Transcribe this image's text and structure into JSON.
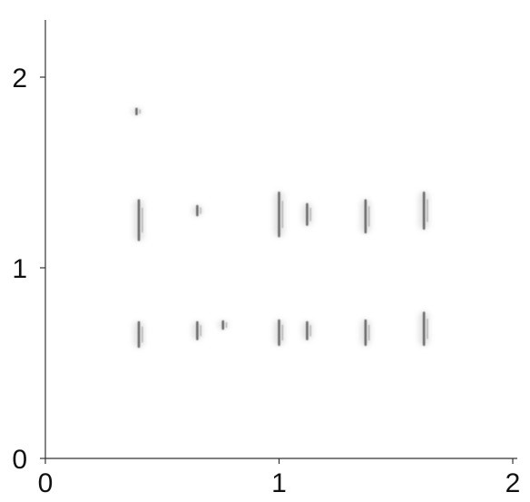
{
  "chart_data": {
    "type": "scatter",
    "title": "",
    "xlabel": "",
    "ylabel": "",
    "xlim": [
      0,
      2
    ],
    "ylim": [
      0,
      2.3
    ],
    "grid": false,
    "legend": "none",
    "x_ticks": [
      {
        "value": 0,
        "label": "0"
      },
      {
        "value": 1,
        "label": "1"
      },
      {
        "value": 2,
        "label": "2"
      }
    ],
    "y_ticks": [
      {
        "value": 0,
        "label": "0"
      },
      {
        "value": 1,
        "label": "1"
      },
      {
        "value": 2,
        "label": "2"
      }
    ],
    "mark_color": "#555555",
    "glow_color": "#cfcfcf",
    "series": [
      {
        "points": [
          {
            "x": 0.4,
            "y": 1.25,
            "spread": 0.22
          },
          {
            "x": 0.65,
            "y": 1.3,
            "spread": 0.06
          },
          {
            "x": 1.0,
            "y": 1.28,
            "spread": 0.24
          },
          {
            "x": 1.12,
            "y": 1.28,
            "spread": 0.12
          },
          {
            "x": 1.37,
            "y": 1.27,
            "spread": 0.18
          },
          {
            "x": 1.62,
            "y": 1.3,
            "spread": 0.2
          },
          {
            "x": 0.4,
            "y": 0.65,
            "spread": 0.14
          },
          {
            "x": 0.65,
            "y": 0.67,
            "spread": 0.1
          },
          {
            "x": 0.76,
            "y": 0.7,
            "spread": 0.05
          },
          {
            "x": 1.0,
            "y": 0.66,
            "spread": 0.14
          },
          {
            "x": 1.12,
            "y": 0.67,
            "spread": 0.1
          },
          {
            "x": 1.37,
            "y": 0.66,
            "spread": 0.14
          },
          {
            "x": 1.62,
            "y": 0.68,
            "spread": 0.18
          },
          {
            "x": 0.39,
            "y": 1.82,
            "spread": 0.04
          }
        ]
      }
    ]
  }
}
